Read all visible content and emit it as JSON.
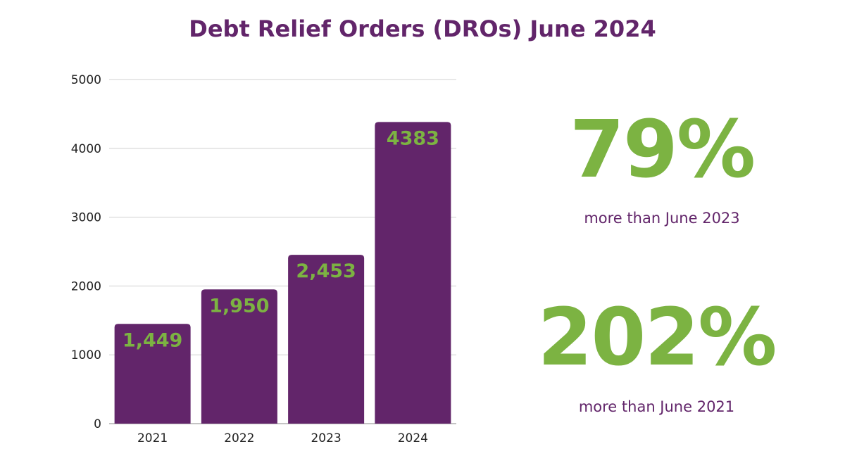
{
  "title": "Debt Relief Orders (DROs) June 2024",
  "colors": {
    "bar": "#62256a",
    "label": "#7cb342",
    "title": "#62256a",
    "grid": "#d0d0d0"
  },
  "chart_data": {
    "type": "bar",
    "title": "Debt Relief Orders (DROs) June 2024",
    "categories": [
      "2021",
      "2022",
      "2023",
      "2024"
    ],
    "values": [
      1449,
      1950,
      2453,
      4383
    ],
    "data_labels": [
      "1,449",
      "1,950",
      "2,453",
      "4383"
    ],
    "yticks": [
      "0",
      "1000",
      "2000",
      "3000",
      "4000",
      "5000"
    ],
    "ylim": [
      0,
      5000
    ],
    "xlabel": "",
    "ylabel": "",
    "grid": true
  },
  "stats": [
    {
      "value": "79%",
      "caption": "more than June 2023"
    },
    {
      "value": "202%",
      "caption": "more than June 2021"
    }
  ]
}
